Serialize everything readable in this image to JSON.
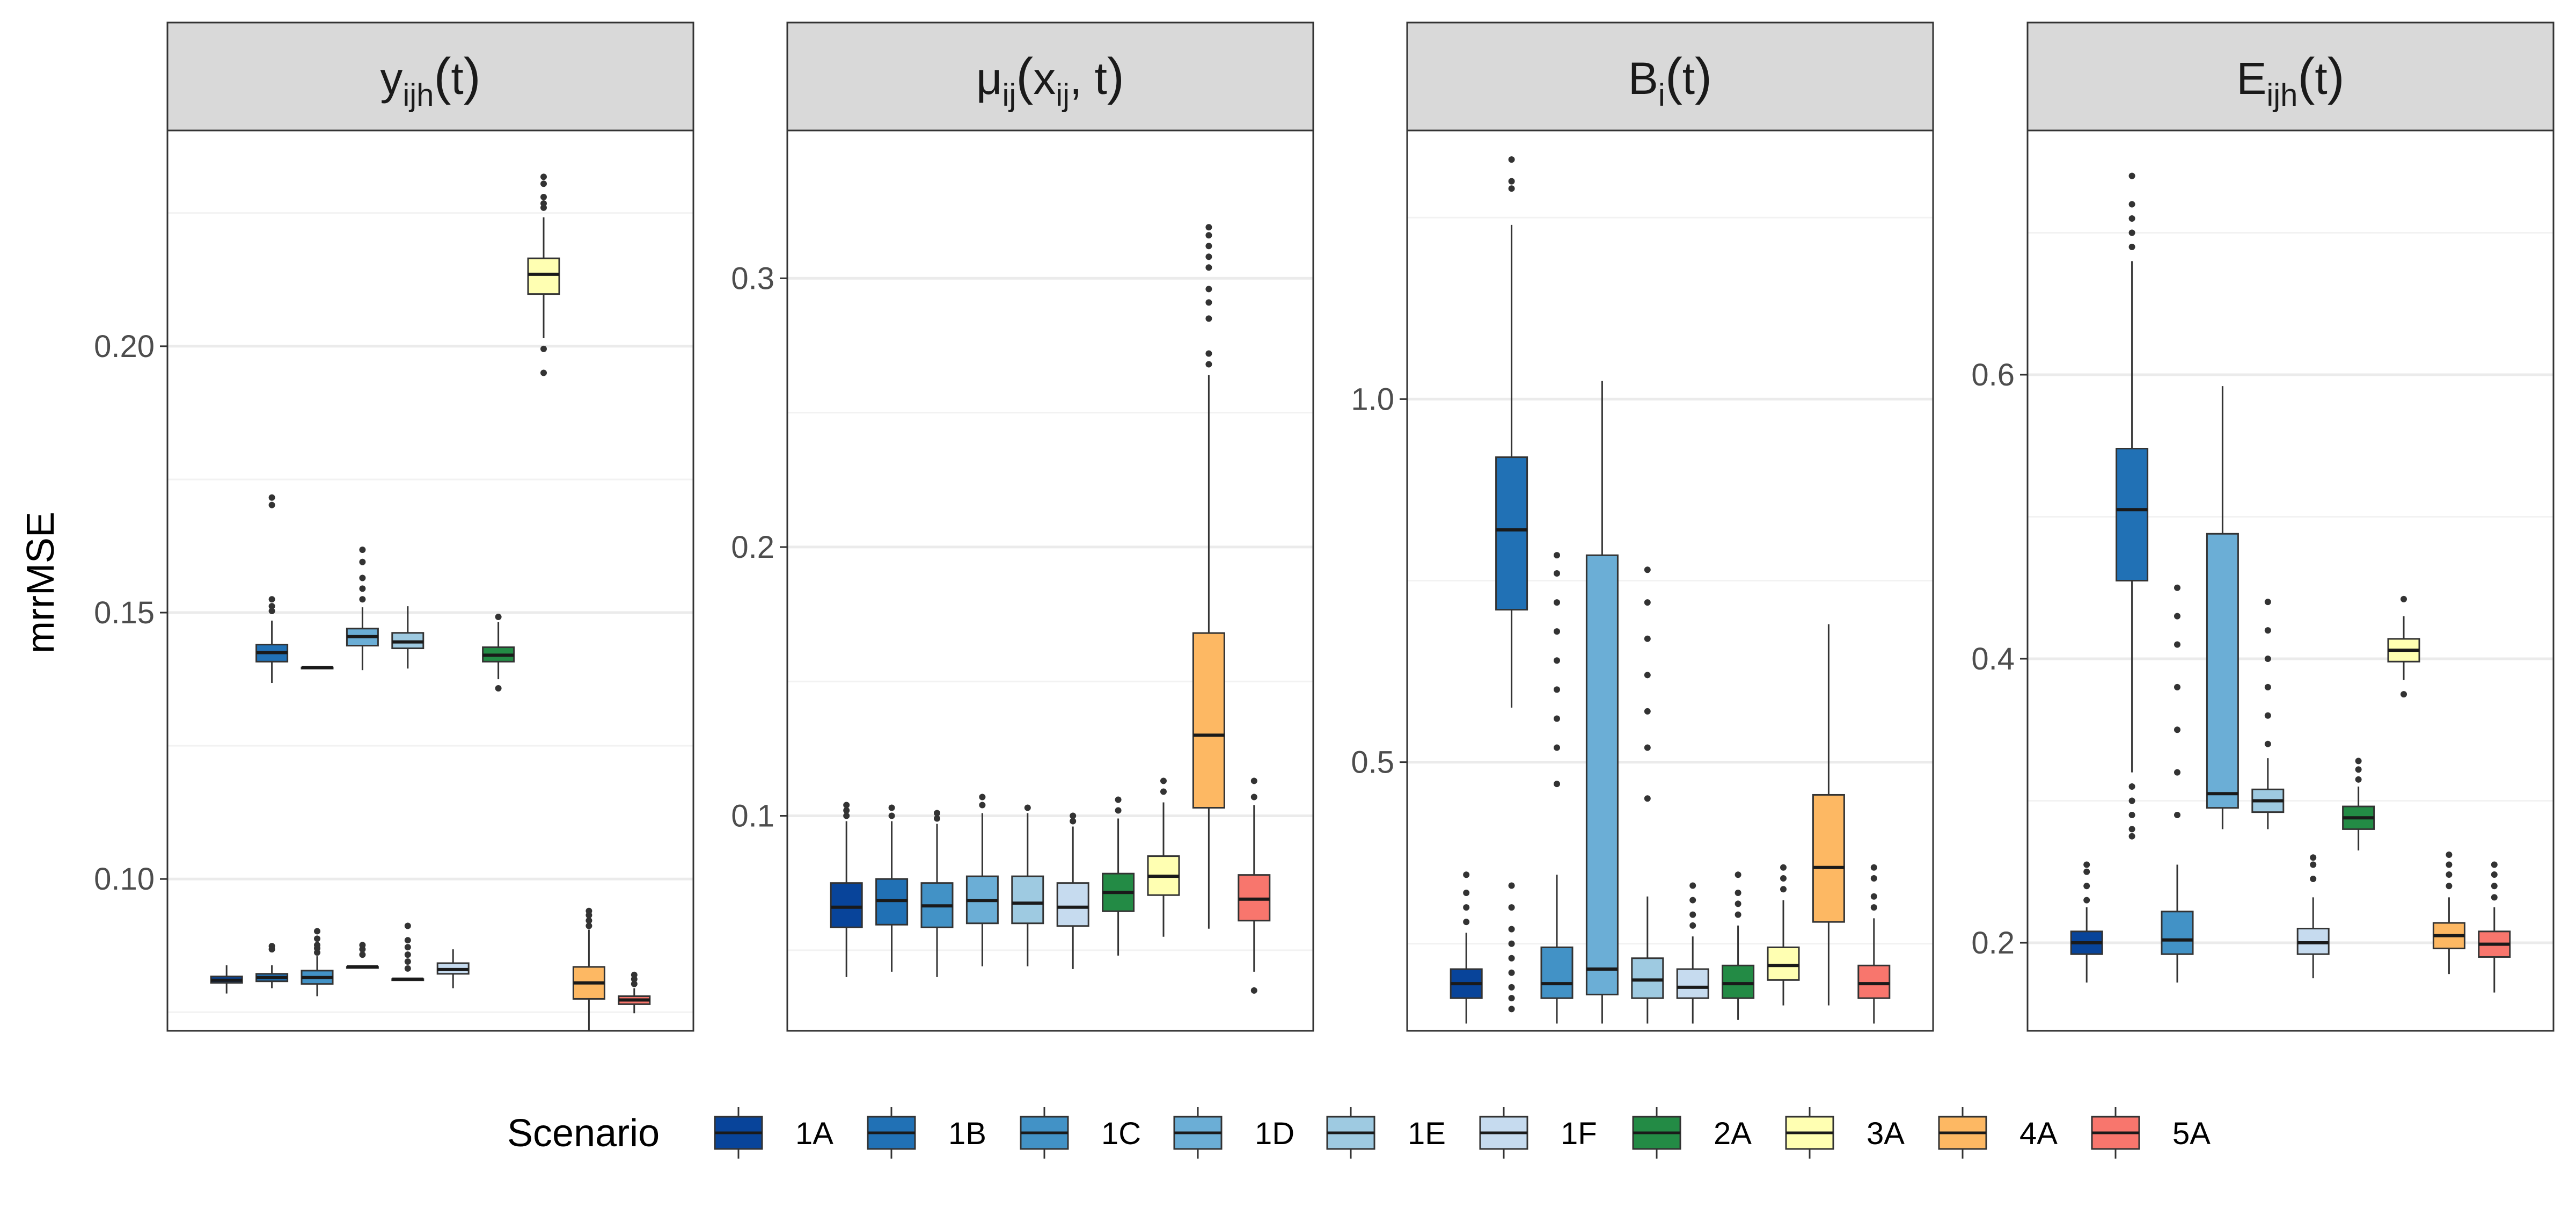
{
  "chart_data": {
    "type": "boxplot",
    "ylabel": "mrrMSE",
    "legend": {
      "title": "Scenario",
      "placement": "bottom",
      "entries": [
        "1A",
        "1B",
        "1C",
        "1D",
        "1E",
        "1F",
        "2A",
        "3A",
        "4A",
        "5A"
      ]
    },
    "colors": {
      "1A": "#08449A",
      "1B": "#2171B5",
      "1C": "#4292C6",
      "1D": "#6BAED6",
      "1E": "#9ECAE1",
      "1F": "#C6DBEF",
      "2A": "#238B45",
      "3A": "#FFFFB2",
      "4A": "#FDB863",
      "5A": "#F8766D",
      "strip_bg": "#D9D9D9",
      "grid_major": "#EBEBEB",
      "grid_minor": "#F2F2F2",
      "border": "#333333",
      "median": "#1A1A1A"
    },
    "panels": [
      {
        "title": {
          "base": "y",
          "sub": "ijh",
          "arg": "t"
        },
        "ylim": [
          0.0715,
          0.2405
        ],
        "ticks": [
          0.1,
          0.15,
          0.2
        ],
        "tick_labels": [
          "0.10",
          "0.15",
          "0.20"
        ],
        "minor_ticks": [
          0.075,
          0.125,
          0.175,
          0.225
        ],
        "series": [
          {
            "scenario": "1A",
            "q1": 0.0805,
            "med": 0.081,
            "q3": 0.0817,
            "wlo": 0.0785,
            "whi": 0.0838,
            "out": []
          },
          {
            "scenario": "1B",
            "q1": 0.1408,
            "med": 0.1425,
            "q3": 0.144,
            "wlo": 0.1368,
            "whi": 0.1485,
            "out": [
              0.1503,
              0.1512,
              0.1525,
              0.1702,
              0.1716
            ]
          },
          {
            "scenario": "1B",
            "q1": 0.0808,
            "med": 0.0815,
            "q3": 0.0822,
            "wlo": 0.0795,
            "whi": 0.0838,
            "out": [
              0.0868,
              0.0874
            ]
          },
          {
            "scenario": "1C",
            "q1": 0.1397,
            "med": 0.1397,
            "q3": 0.1397,
            "wlo": 0.1397,
            "whi": 0.1397,
            "out": []
          },
          {
            "scenario": "1C",
            "q1": 0.0803,
            "med": 0.0815,
            "q3": 0.0828,
            "wlo": 0.078,
            "whi": 0.0855,
            "out": [
              0.0862,
              0.087,
              0.0876,
              0.0888,
              0.0902
            ]
          },
          {
            "scenario": "1D",
            "q1": 0.1438,
            "med": 0.1455,
            "q3": 0.147,
            "wlo": 0.1392,
            "whi": 0.151,
            "out": [
              0.1525,
              0.1545,
              0.1565,
              0.1595,
              0.1618
            ]
          },
          {
            "scenario": "1D",
            "q1": 0.0835,
            "med": 0.0835,
            "q3": 0.0835,
            "wlo": 0.0835,
            "whi": 0.0835,
            "out": [
              0.0858,
              0.0868,
              0.0876
            ]
          },
          {
            "scenario": "1E",
            "q1": 0.1433,
            "med": 0.1445,
            "q3": 0.1462,
            "wlo": 0.1395,
            "whi": 0.1512,
            "out": []
          },
          {
            "scenario": "1E",
            "q1": 0.0812,
            "med": 0.0812,
            "q3": 0.0812,
            "wlo": 0.0812,
            "whi": 0.0812,
            "out": [
              0.0832,
              0.0845,
              0.0858,
              0.0872,
              0.0885,
              0.0912
            ]
          },
          {
            "scenario": "1F",
            "q1": 0.0822,
            "med": 0.083,
            "q3": 0.0842,
            "wlo": 0.0795,
            "whi": 0.0868,
            "out": []
          },
          {
            "scenario": "2A",
            "q1": 0.1408,
            "med": 0.142,
            "q3": 0.1435,
            "wlo": 0.1375,
            "whi": 0.1482,
            "out": [
              0.1358,
              0.1492
            ]
          },
          {
            "scenario": "3A",
            "q1": 0.2098,
            "med": 0.2135,
            "q3": 0.2165,
            "wlo": 0.2015,
            "whi": 0.2242,
            "out": [
              0.195,
              0.1995,
              0.226,
              0.2268,
              0.228,
              0.2305,
              0.2318
            ]
          },
          {
            "scenario": "4A",
            "q1": 0.0775,
            "med": 0.0805,
            "q3": 0.0835,
            "wlo": 0.0715,
            "whi": 0.0905,
            "out": [
              0.0912,
              0.0922,
              0.0932,
              0.094
            ]
          },
          {
            "scenario": "5A",
            "q1": 0.0765,
            "med": 0.0773,
            "q3": 0.078,
            "wlo": 0.0748,
            "whi": 0.0795,
            "out": [
              0.0803,
              0.0812,
              0.082
            ]
          }
        ]
      },
      {
        "title": {
          "base": "μ",
          "sub": "ij",
          "arg": "x",
          "arg2": "t"
        },
        "ylim": [
          0.02,
          0.355
        ],
        "ticks": [
          0.1,
          0.2,
          0.3
        ],
        "tick_labels": [
          "0.1",
          "0.2",
          "0.3"
        ],
        "minor_ticks": [
          0.05,
          0.15,
          0.25
        ],
        "series": [
          {
            "scenario": "1A",
            "q1": 0.0585,
            "med": 0.066,
            "q3": 0.075,
            "wlo": 0.04,
            "whi": 0.098,
            "out": [
              0.1,
              0.102,
              0.104
            ]
          },
          {
            "scenario": "1B",
            "q1": 0.0595,
            "med": 0.0685,
            "q3": 0.0765,
            "wlo": 0.042,
            "whi": 0.098,
            "out": [
              0.1,
              0.103
            ]
          },
          {
            "scenario": "1C",
            "q1": 0.0585,
            "med": 0.0665,
            "q3": 0.075,
            "wlo": 0.04,
            "whi": 0.097,
            "out": [
              0.099,
              0.101
            ]
          },
          {
            "scenario": "1D",
            "q1": 0.06,
            "med": 0.0685,
            "q3": 0.0775,
            "wlo": 0.044,
            "whi": 0.101,
            "out": [
              0.104,
              0.107
            ]
          },
          {
            "scenario": "1E",
            "q1": 0.06,
            "med": 0.0675,
            "q3": 0.0775,
            "wlo": 0.044,
            "whi": 0.101,
            "out": [
              0.103
            ]
          },
          {
            "scenario": "1F",
            "q1": 0.059,
            "med": 0.066,
            "q3": 0.075,
            "wlo": 0.043,
            "whi": 0.096,
            "out": [
              0.098,
              0.1
            ]
          },
          {
            "scenario": "2A",
            "q1": 0.0645,
            "med": 0.0715,
            "q3": 0.0785,
            "wlo": 0.048,
            "whi": 0.099,
            "out": [
              0.102,
              0.106
            ]
          },
          {
            "scenario": "3A",
            "q1": 0.0705,
            "med": 0.0775,
            "q3": 0.085,
            "wlo": 0.055,
            "whi": 0.105,
            "out": [
              0.109,
              0.113
            ]
          },
          {
            "scenario": "4A",
            "q1": 0.103,
            "med": 0.13,
            "q3": 0.168,
            "wlo": 0.058,
            "whi": 0.264,
            "out": [
              0.268,
              0.272,
              0.285,
              0.291,
              0.296,
              0.304,
              0.308,
              0.312,
              0.316,
              0.319
            ]
          },
          {
            "scenario": "5A",
            "q1": 0.061,
            "med": 0.069,
            "q3": 0.078,
            "wlo": 0.042,
            "whi": 0.104,
            "out": [
              0.107,
              0.113,
              0.035
            ]
          }
        ]
      },
      {
        "title": {
          "base": "B",
          "sub": "i",
          "arg": "t"
        },
        "ylim": [
          0.13,
          1.37
        ],
        "ticks": [
          0.5,
          1.0
        ],
        "tick_labels": [
          "0.5",
          "1.0"
        ],
        "minor_ticks": [
          0.25,
          0.75,
          1.25
        ],
        "series": [
          {
            "scenario": "1A",
            "q1": 0.175,
            "med": 0.195,
            "q3": 0.215,
            "wlo": 0.14,
            "whi": 0.265,
            "out": [
              0.28,
              0.3,
              0.32,
              0.345
            ]
          },
          {
            "scenario": "1B",
            "q1": 0.71,
            "med": 0.82,
            "q3": 0.92,
            "wlo": 0.575,
            "whi": 1.24,
            "out": [
              1.29,
              1.3,
              1.33,
              0.33,
              0.3,
              0.27,
              0.25,
              0.23,
              0.21,
              0.19,
              0.175,
              0.16
            ]
          },
          {
            "scenario": "1C",
            "q1": 0.175,
            "med": 0.195,
            "q3": 0.245,
            "wlo": 0.14,
            "whi": 0.345,
            "out": [
              0.47,
              0.52,
              0.56,
              0.6,
              0.64,
              0.68,
              0.72,
              0.76,
              0.785
            ]
          },
          {
            "scenario": "1D",
            "q1": 0.18,
            "med": 0.215,
            "q3": 0.785,
            "wlo": 0.14,
            "whi": 1.025,
            "out": []
          },
          {
            "scenario": "1E",
            "q1": 0.175,
            "med": 0.2,
            "q3": 0.23,
            "wlo": 0.14,
            "whi": 0.315,
            "out": [
              0.45,
              0.52,
              0.57,
              0.62,
              0.67,
              0.72,
              0.765
            ]
          },
          {
            "scenario": "1F",
            "q1": 0.175,
            "med": 0.19,
            "q3": 0.215,
            "wlo": 0.14,
            "whi": 0.26,
            "out": [
              0.275,
              0.29,
              0.31,
              0.33
            ]
          },
          {
            "scenario": "2A",
            "q1": 0.175,
            "med": 0.195,
            "q3": 0.22,
            "wlo": 0.145,
            "whi": 0.275,
            "out": [
              0.29,
              0.305,
              0.32,
              0.345
            ]
          },
          {
            "scenario": "3A",
            "q1": 0.2,
            "med": 0.22,
            "q3": 0.245,
            "wlo": 0.165,
            "whi": 0.31,
            "out": [
              0.325,
              0.34,
              0.355
            ]
          },
          {
            "scenario": "4A",
            "q1": 0.28,
            "med": 0.355,
            "q3": 0.455,
            "wlo": 0.165,
            "whi": 0.69,
            "out": []
          },
          {
            "scenario": "5A",
            "q1": 0.175,
            "med": 0.195,
            "q3": 0.22,
            "wlo": 0.14,
            "whi": 0.285,
            "out": [
              0.3,
              0.315,
              0.34,
              0.355
            ]
          }
        ]
      },
      {
        "title": {
          "base": "E",
          "sub": "ijh",
          "arg": "t"
        },
        "ylim": [
          0.138,
          0.772
        ],
        "ticks": [
          0.2,
          0.4,
          0.6
        ],
        "tick_labels": [
          "0.2",
          "0.4",
          "0.6"
        ],
        "minor_ticks": [
          0.3,
          0.5,
          0.7
        ],
        "series": [
          {
            "scenario": "1A",
            "q1": 0.192,
            "med": 0.2,
            "q3": 0.208,
            "wlo": 0.172,
            "whi": 0.225,
            "out": [
              0.23,
              0.24,
              0.25,
              0.255
            ]
          },
          {
            "scenario": "1B",
            "q1": 0.455,
            "med": 0.505,
            "q3": 0.548,
            "wlo": 0.32,
            "whi": 0.68,
            "out": [
              0.69,
              0.7,
              0.71,
              0.72,
              0.74,
              0.31,
              0.3,
              0.29,
              0.28,
              0.275
            ]
          },
          {
            "scenario": "1C",
            "q1": 0.192,
            "med": 0.202,
            "q3": 0.222,
            "wlo": 0.172,
            "whi": 0.255,
            "out": [
              0.29,
              0.32,
              0.35,
              0.38,
              0.41,
              0.43,
              0.45
            ]
          },
          {
            "scenario": "1D",
            "q1": 0.295,
            "med": 0.305,
            "q3": 0.488,
            "wlo": 0.28,
            "whi": 0.592,
            "out": []
          },
          {
            "scenario": "1E",
            "q1": 0.292,
            "med": 0.3,
            "q3": 0.308,
            "wlo": 0.28,
            "whi": 0.33,
            "out": [
              0.34,
              0.36,
              0.38,
              0.4,
              0.42,
              0.44
            ]
          },
          {
            "scenario": "1F",
            "q1": 0.192,
            "med": 0.2,
            "q3": 0.21,
            "wlo": 0.175,
            "whi": 0.232,
            "out": [
              0.245,
              0.255,
              0.26
            ]
          },
          {
            "scenario": "2A",
            "q1": 0.28,
            "med": 0.288,
            "q3": 0.296,
            "wlo": 0.265,
            "whi": 0.31,
            "out": [
              0.315,
              0.322,
              0.328
            ]
          },
          {
            "scenario": "3A",
            "q1": 0.398,
            "med": 0.406,
            "q3": 0.414,
            "wlo": 0.385,
            "whi": 0.43,
            "out": [
              0.375,
              0.442
            ]
          },
          {
            "scenario": "4A",
            "q1": 0.196,
            "med": 0.205,
            "q3": 0.214,
            "wlo": 0.178,
            "whi": 0.232,
            "out": [
              0.24,
              0.248,
              0.255,
              0.262
            ]
          },
          {
            "scenario": "5A",
            "q1": 0.19,
            "med": 0.199,
            "q3": 0.208,
            "wlo": 0.165,
            "whi": 0.225,
            "out": [
              0.232,
              0.24,
              0.248,
              0.255
            ]
          }
        ]
      }
    ]
  }
}
